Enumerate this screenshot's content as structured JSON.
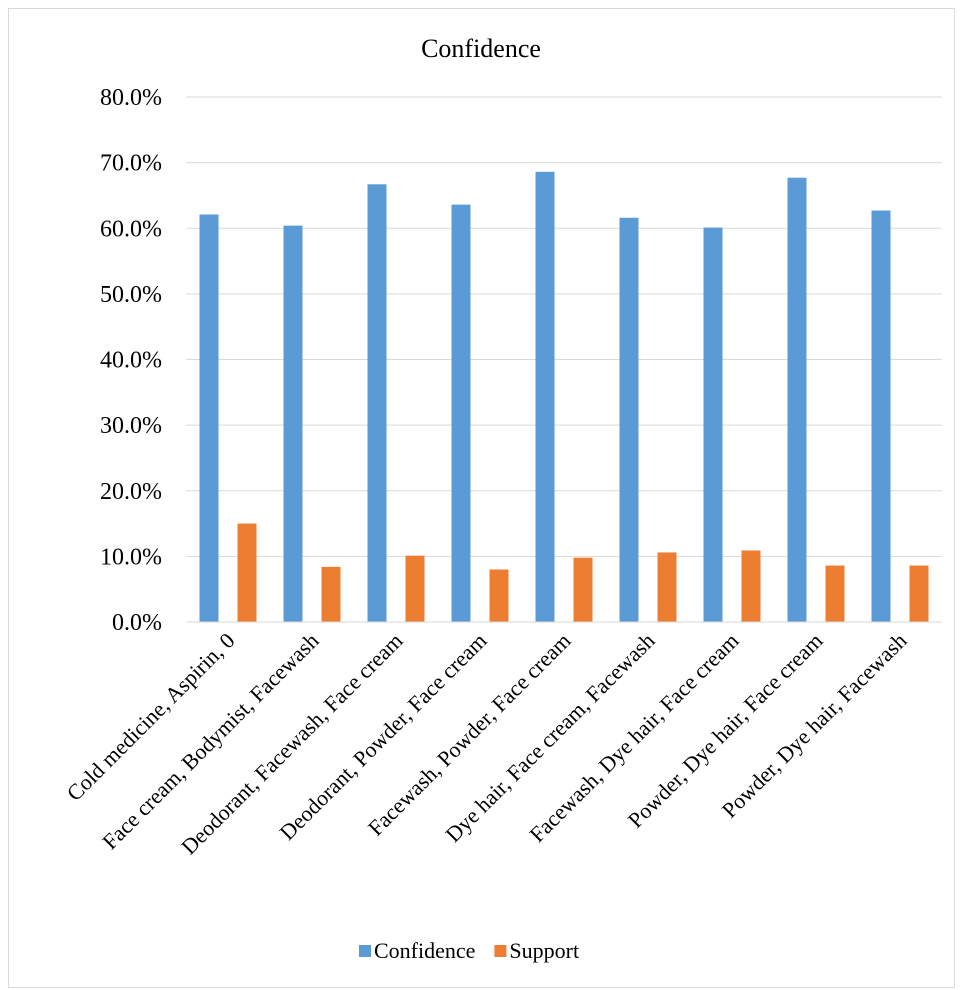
{
  "chart_data": {
    "type": "bar",
    "title": "Confidence",
    "xlabel": "",
    "ylabel": "",
    "categories": [
      "Cold medicine, Aspirin, 0",
      "Face cream, Bodymist, Facewash",
      "Deodorant, Facewash, Face cream",
      "Deodorant, Powder, Face cream",
      "Facewash, Powder, Face cream",
      "Dye hair, Face cream, Facewash",
      "Facewash, Dye hair, Face cream",
      "Powder, Dye hair, Face cream",
      "Powder, Dye hair, Facewash"
    ],
    "series": [
      {
        "name": "Confidence",
        "color": "#5b9bd5",
        "values": [
          62.1,
          60.4,
          66.7,
          63.6,
          68.6,
          61.6,
          60.1,
          67.7,
          62.7
        ]
      },
      {
        "name": "Support",
        "color": "#ed7d31",
        "values": [
          15.0,
          8.4,
          10.1,
          8.0,
          9.8,
          10.6,
          10.9,
          8.6,
          8.6
        ]
      }
    ],
    "ylim": [
      0,
      80
    ],
    "yticks": [
      "0.0%",
      "10.0%",
      "20.0%",
      "30.0%",
      "40.0%",
      "50.0%",
      "60.0%",
      "70.0%",
      "80.0%"
    ],
    "grid": true,
    "legend_position": "bottom"
  }
}
